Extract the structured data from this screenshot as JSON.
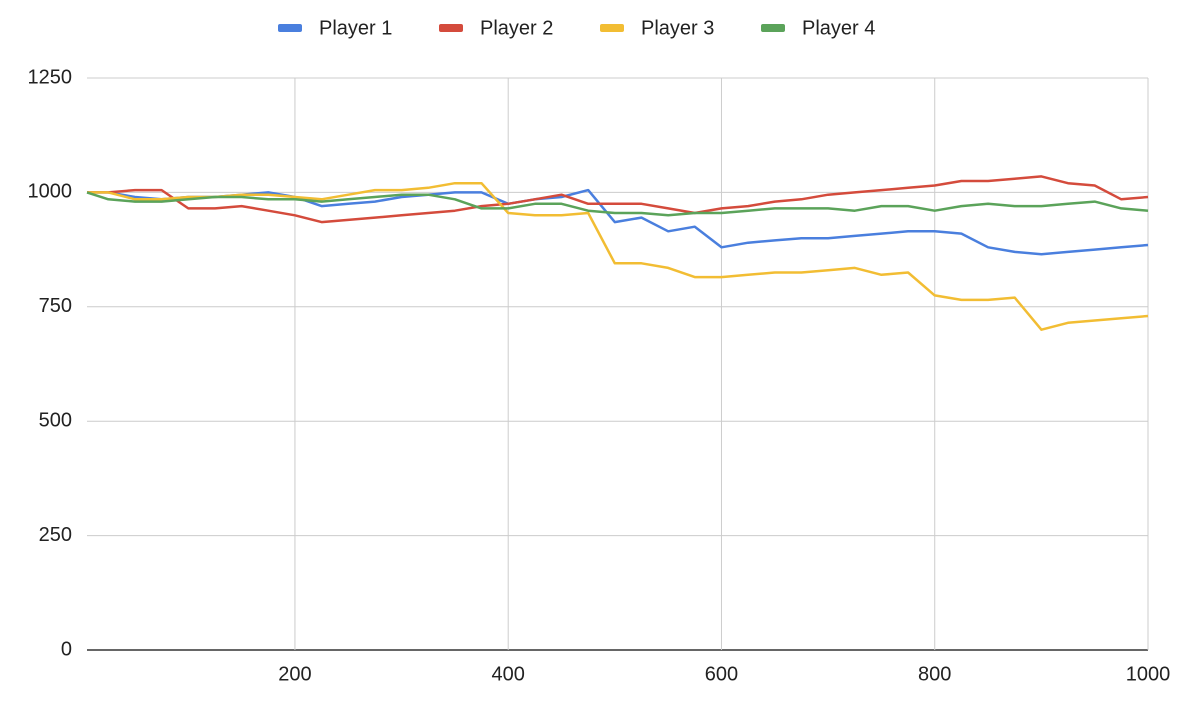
{
  "chart_data": {
    "type": "line",
    "x": [
      5,
      25,
      50,
      75,
      100,
      125,
      150,
      175,
      200,
      225,
      250,
      275,
      300,
      325,
      350,
      375,
      400,
      425,
      450,
      475,
      500,
      525,
      550,
      575,
      600,
      625,
      650,
      675,
      700,
      725,
      750,
      775,
      800,
      825,
      850,
      875,
      900,
      925,
      950,
      975,
      1000
    ],
    "series": [
      {
        "name": "Player 1",
        "color": "#4a7fde",
        "values": [
          1000,
          1000,
          990,
          985,
          990,
          990,
          995,
          1000,
          990,
          970,
          975,
          980,
          990,
          995,
          1000,
          1000,
          975,
          985,
          990,
          1005,
          935,
          945,
          915,
          925,
          880,
          890,
          895,
          900,
          900,
          905,
          910,
          915,
          915,
          910,
          880,
          870,
          865,
          870,
          875,
          880,
          885
        ]
      },
      {
        "name": "Player 2",
        "color": "#d44b3c",
        "values": [
          1000,
          1000,
          1005,
          1005,
          965,
          965,
          970,
          960,
          950,
          935,
          940,
          945,
          950,
          955,
          960,
          970,
          975,
          985,
          995,
          975,
          975,
          975,
          965,
          955,
          965,
          970,
          980,
          985,
          995,
          1000,
          1005,
          1010,
          1015,
          1025,
          1025,
          1030,
          1035,
          1020,
          1015,
          985,
          990
        ]
      },
      {
        "name": "Player 3",
        "color": "#f2bd33",
        "values": [
          1000,
          1000,
          985,
          985,
          990,
          990,
          995,
          995,
          990,
          985,
          995,
          1005,
          1005,
          1010,
          1020,
          1020,
          955,
          950,
          950,
          955,
          845,
          845,
          835,
          815,
          815,
          820,
          825,
          825,
          830,
          835,
          820,
          825,
          775,
          765,
          765,
          770,
          700,
          715,
          720,
          725,
          730
        ]
      },
      {
        "name": "Player 4",
        "color": "#5ba35a",
        "values": [
          1000,
          985,
          980,
          980,
          985,
          990,
          990,
          985,
          985,
          980,
          985,
          990,
          995,
          995,
          985,
          965,
          965,
          975,
          975,
          960,
          955,
          955,
          950,
          955,
          955,
          960,
          965,
          965,
          965,
          960,
          970,
          970,
          960,
          970,
          975,
          970,
          970,
          975,
          980,
          965,
          960
        ]
      }
    ],
    "xlim": [
      5,
      1000
    ],
    "xticks": [
      200,
      400,
      600,
      800,
      1000
    ],
    "ylim": [
      0,
      1250
    ],
    "yticks": [
      0,
      250,
      500,
      750,
      1000,
      1250
    ],
    "grid": true,
    "legend": "top"
  }
}
